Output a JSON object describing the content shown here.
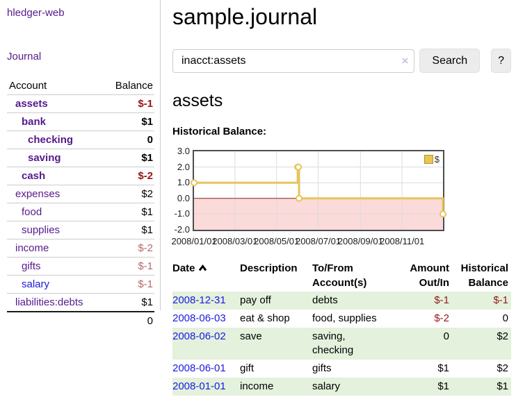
{
  "app": {
    "title": "hledger-web"
  },
  "sidebar": {
    "journal_link": "Journal",
    "accounts_table": {
      "account_header": "Account",
      "balance_header": "Balance",
      "rows": [
        {
          "account": "assets",
          "balance": "$-1",
          "depth": 1,
          "bold": true,
          "balance_style": "neg-strong"
        },
        {
          "account": "bank",
          "balance": "$1",
          "depth": 2,
          "bold": true,
          "balance_style": ""
        },
        {
          "account": "checking",
          "balance": "0",
          "depth": 3,
          "bold": true,
          "balance_style": ""
        },
        {
          "account": "saving",
          "balance": "$1",
          "depth": 3,
          "bold": true,
          "balance_style": ""
        },
        {
          "account": "cash",
          "balance": "$-2",
          "depth": 2,
          "bold": true,
          "balance_style": "neg-strong"
        },
        {
          "account": "expenses",
          "balance": "$2",
          "depth": 1,
          "bold": false,
          "balance_style": ""
        },
        {
          "account": "food",
          "balance": "$1",
          "depth": 2,
          "bold": false,
          "balance_style": ""
        },
        {
          "account": "supplies",
          "balance": "$1",
          "depth": 2,
          "bold": false,
          "balance_style": ""
        },
        {
          "account": "income",
          "balance": "$-2",
          "depth": 1,
          "bold": false,
          "balance_style": "neg-muted"
        },
        {
          "account": "gifts",
          "balance": "$-1",
          "depth": 2,
          "bold": false,
          "balance_style": "neg-muted"
        },
        {
          "account": "salary",
          "balance": "$-1",
          "depth": 2,
          "bold": false,
          "balance_style": "neg-muted",
          "link_blue": true
        },
        {
          "account": "liabilities:debts",
          "balance": "$1",
          "depth": 1,
          "bold": false,
          "balance_style": ""
        }
      ],
      "total": "0"
    }
  },
  "main": {
    "title": "sample.journal",
    "search": {
      "value": "inacct:assets",
      "clear_icon": "×",
      "search_button": "Search",
      "help_button": "?"
    },
    "account_heading": "assets",
    "chart_title": "Historical Balance:"
  },
  "chart_data": {
    "type": "line",
    "title": "Historical Balance",
    "step": true,
    "legend": {
      "label": "$",
      "position": "top-right"
    },
    "ylim": [
      -2,
      3
    ],
    "y_ticks": [
      "3.0",
      "2.0",
      "1.0",
      "0.0",
      "-1.0",
      "-2.0"
    ],
    "x_ticks": [
      {
        "label": "2008/01/01",
        "day": 0
      },
      {
        "label": "2008/03/01",
        "day": 60
      },
      {
        "label": "2008/05/01",
        "day": 121
      },
      {
        "label": "2008/07/01",
        "day": 182
      },
      {
        "label": "2008/09/01",
        "day": 244
      },
      {
        "label": "2008/11/01",
        "day": 305
      }
    ],
    "x_range_days": 365,
    "series": [
      {
        "name": "$",
        "points": [
          {
            "date": "2008-01-01",
            "day": 0,
            "value": 1
          },
          {
            "date": "2008-06-01",
            "day": 152,
            "value": 2
          },
          {
            "date": "2008-06-02",
            "day": 153,
            "value": 2
          },
          {
            "date": "2008-06-03",
            "day": 154,
            "value": 0
          },
          {
            "date": "2008-12-31",
            "day": 365,
            "value": -1
          }
        ]
      }
    ],
    "colors": {
      "line": "#e8c45c",
      "marker_fill": "#ffffff",
      "negative_region": "#fbdada",
      "zero_line": "#8b1a1a",
      "grid": "#dcdcdc",
      "border": "#4d4d4d"
    }
  },
  "register": {
    "headers": [
      {
        "text": "Date",
        "align": "left",
        "sorted": true
      },
      {
        "text": "Description",
        "align": "left"
      },
      {
        "text": "To/From\nAccount(s)",
        "align": "left"
      },
      {
        "text": "Amount\nOut/In",
        "align": "right"
      },
      {
        "text": "Historical\nBalance",
        "align": "right"
      }
    ],
    "rows": [
      {
        "date": "2008-12-31",
        "description": "pay off",
        "accounts": "debts",
        "amount": "$-1",
        "amount_neg": true,
        "balance": "$-1",
        "balance_neg": true,
        "shaded": true
      },
      {
        "date": "2008-06-03",
        "description": "eat & shop",
        "accounts": "food, supplies",
        "amount": "$-2",
        "amount_neg": true,
        "balance": "0",
        "balance_neg": false,
        "shaded": false
      },
      {
        "date": "2008-06-02",
        "description": "save",
        "accounts": "saving,\nchecking",
        "amount": "0",
        "amount_neg": false,
        "balance": "$2",
        "balance_neg": false,
        "shaded": true
      },
      {
        "date": "2008-06-01",
        "description": "gift",
        "accounts": "gifts",
        "amount": "$1",
        "amount_neg": false,
        "balance": "$2",
        "balance_neg": false,
        "shaded": false
      },
      {
        "date": "2008-01-01",
        "description": "income",
        "accounts": "salary",
        "amount": "$1",
        "amount_neg": false,
        "balance": "$1",
        "balance_neg": false,
        "shaded": true
      }
    ]
  }
}
